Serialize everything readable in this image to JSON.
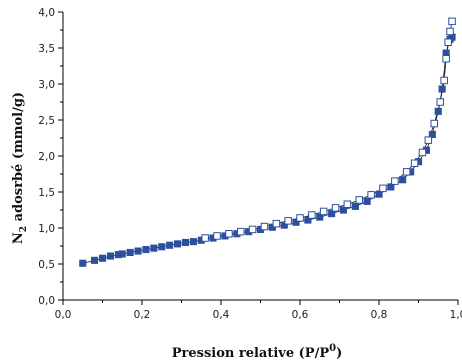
{
  "chart_data": {
    "type": "scatter",
    "title": "",
    "xlabel": "Pression relative (P/P0)",
    "xlabel_main": "Pression relative (P/P",
    "xlabel_sup": "0",
    "xlabel_end": ")",
    "ylabel": "N2 adosrbé (mmol/g)",
    "ylabel_main": "N",
    "ylabel_sub": "2",
    "ylabel_rest": " adosrbé (mmol/g)",
    "xlim": [
      0.0,
      1.0
    ],
    "ylim": [
      0.0,
      4.0
    ],
    "xticks": [
      "0,0",
      "0,2",
      "0,4",
      "0,6",
      "0,8",
      "1,0"
    ],
    "yticks": [
      "0,0",
      "0,5",
      "1,0",
      "1,5",
      "2,0",
      "2,5",
      "3,0",
      "3,5",
      "4,0"
    ],
    "grid": false,
    "series": [
      {
        "marker": "filled-square",
        "color": "#2c4f9e",
        "x": [
          0.05,
          0.08,
          0.1,
          0.12,
          0.14,
          0.15,
          0.17,
          0.19,
          0.21,
          0.23,
          0.25,
          0.27,
          0.29,
          0.31,
          0.33,
          0.35,
          0.38,
          0.41,
          0.44,
          0.47,
          0.5,
          0.53,
          0.56,
          0.59,
          0.62,
          0.65,
          0.68,
          0.71,
          0.74,
          0.77,
          0.8,
          0.83,
          0.86,
          0.88,
          0.9,
          0.92,
          0.935,
          0.95,
          0.96,
          0.97,
          0.98,
          0.985
        ],
        "y": [
          0.51,
          0.55,
          0.58,
          0.61,
          0.63,
          0.64,
          0.66,
          0.68,
          0.7,
          0.72,
          0.74,
          0.76,
          0.78,
          0.8,
          0.81,
          0.83,
          0.86,
          0.89,
          0.92,
          0.95,
          0.98,
          1.01,
          1.04,
          1.08,
          1.11,
          1.15,
          1.2,
          1.25,
          1.3,
          1.37,
          1.47,
          1.57,
          1.67,
          1.78,
          1.92,
          2.08,
          2.3,
          2.62,
          2.93,
          3.43,
          3.62,
          3.65
        ]
      },
      {
        "marker": "open-square",
        "color": "#2c4f9e",
        "x": [
          0.36,
          0.39,
          0.42,
          0.45,
          0.48,
          0.51,
          0.54,
          0.57,
          0.6,
          0.63,
          0.66,
          0.69,
          0.72,
          0.75,
          0.78,
          0.81,
          0.84,
          0.87,
          0.89,
          0.91,
          0.925,
          0.94,
          0.955,
          0.965,
          0.97,
          0.975,
          0.98,
          0.985
        ],
        "y": [
          0.86,
          0.89,
          0.92,
          0.95,
          0.98,
          1.02,
          1.06,
          1.1,
          1.14,
          1.18,
          1.23,
          1.28,
          1.33,
          1.39,
          1.46,
          1.55,
          1.65,
          1.78,
          1.9,
          2.05,
          2.22,
          2.45,
          2.75,
          3.05,
          3.35,
          3.58,
          3.73,
          3.87
        ]
      }
    ]
  }
}
